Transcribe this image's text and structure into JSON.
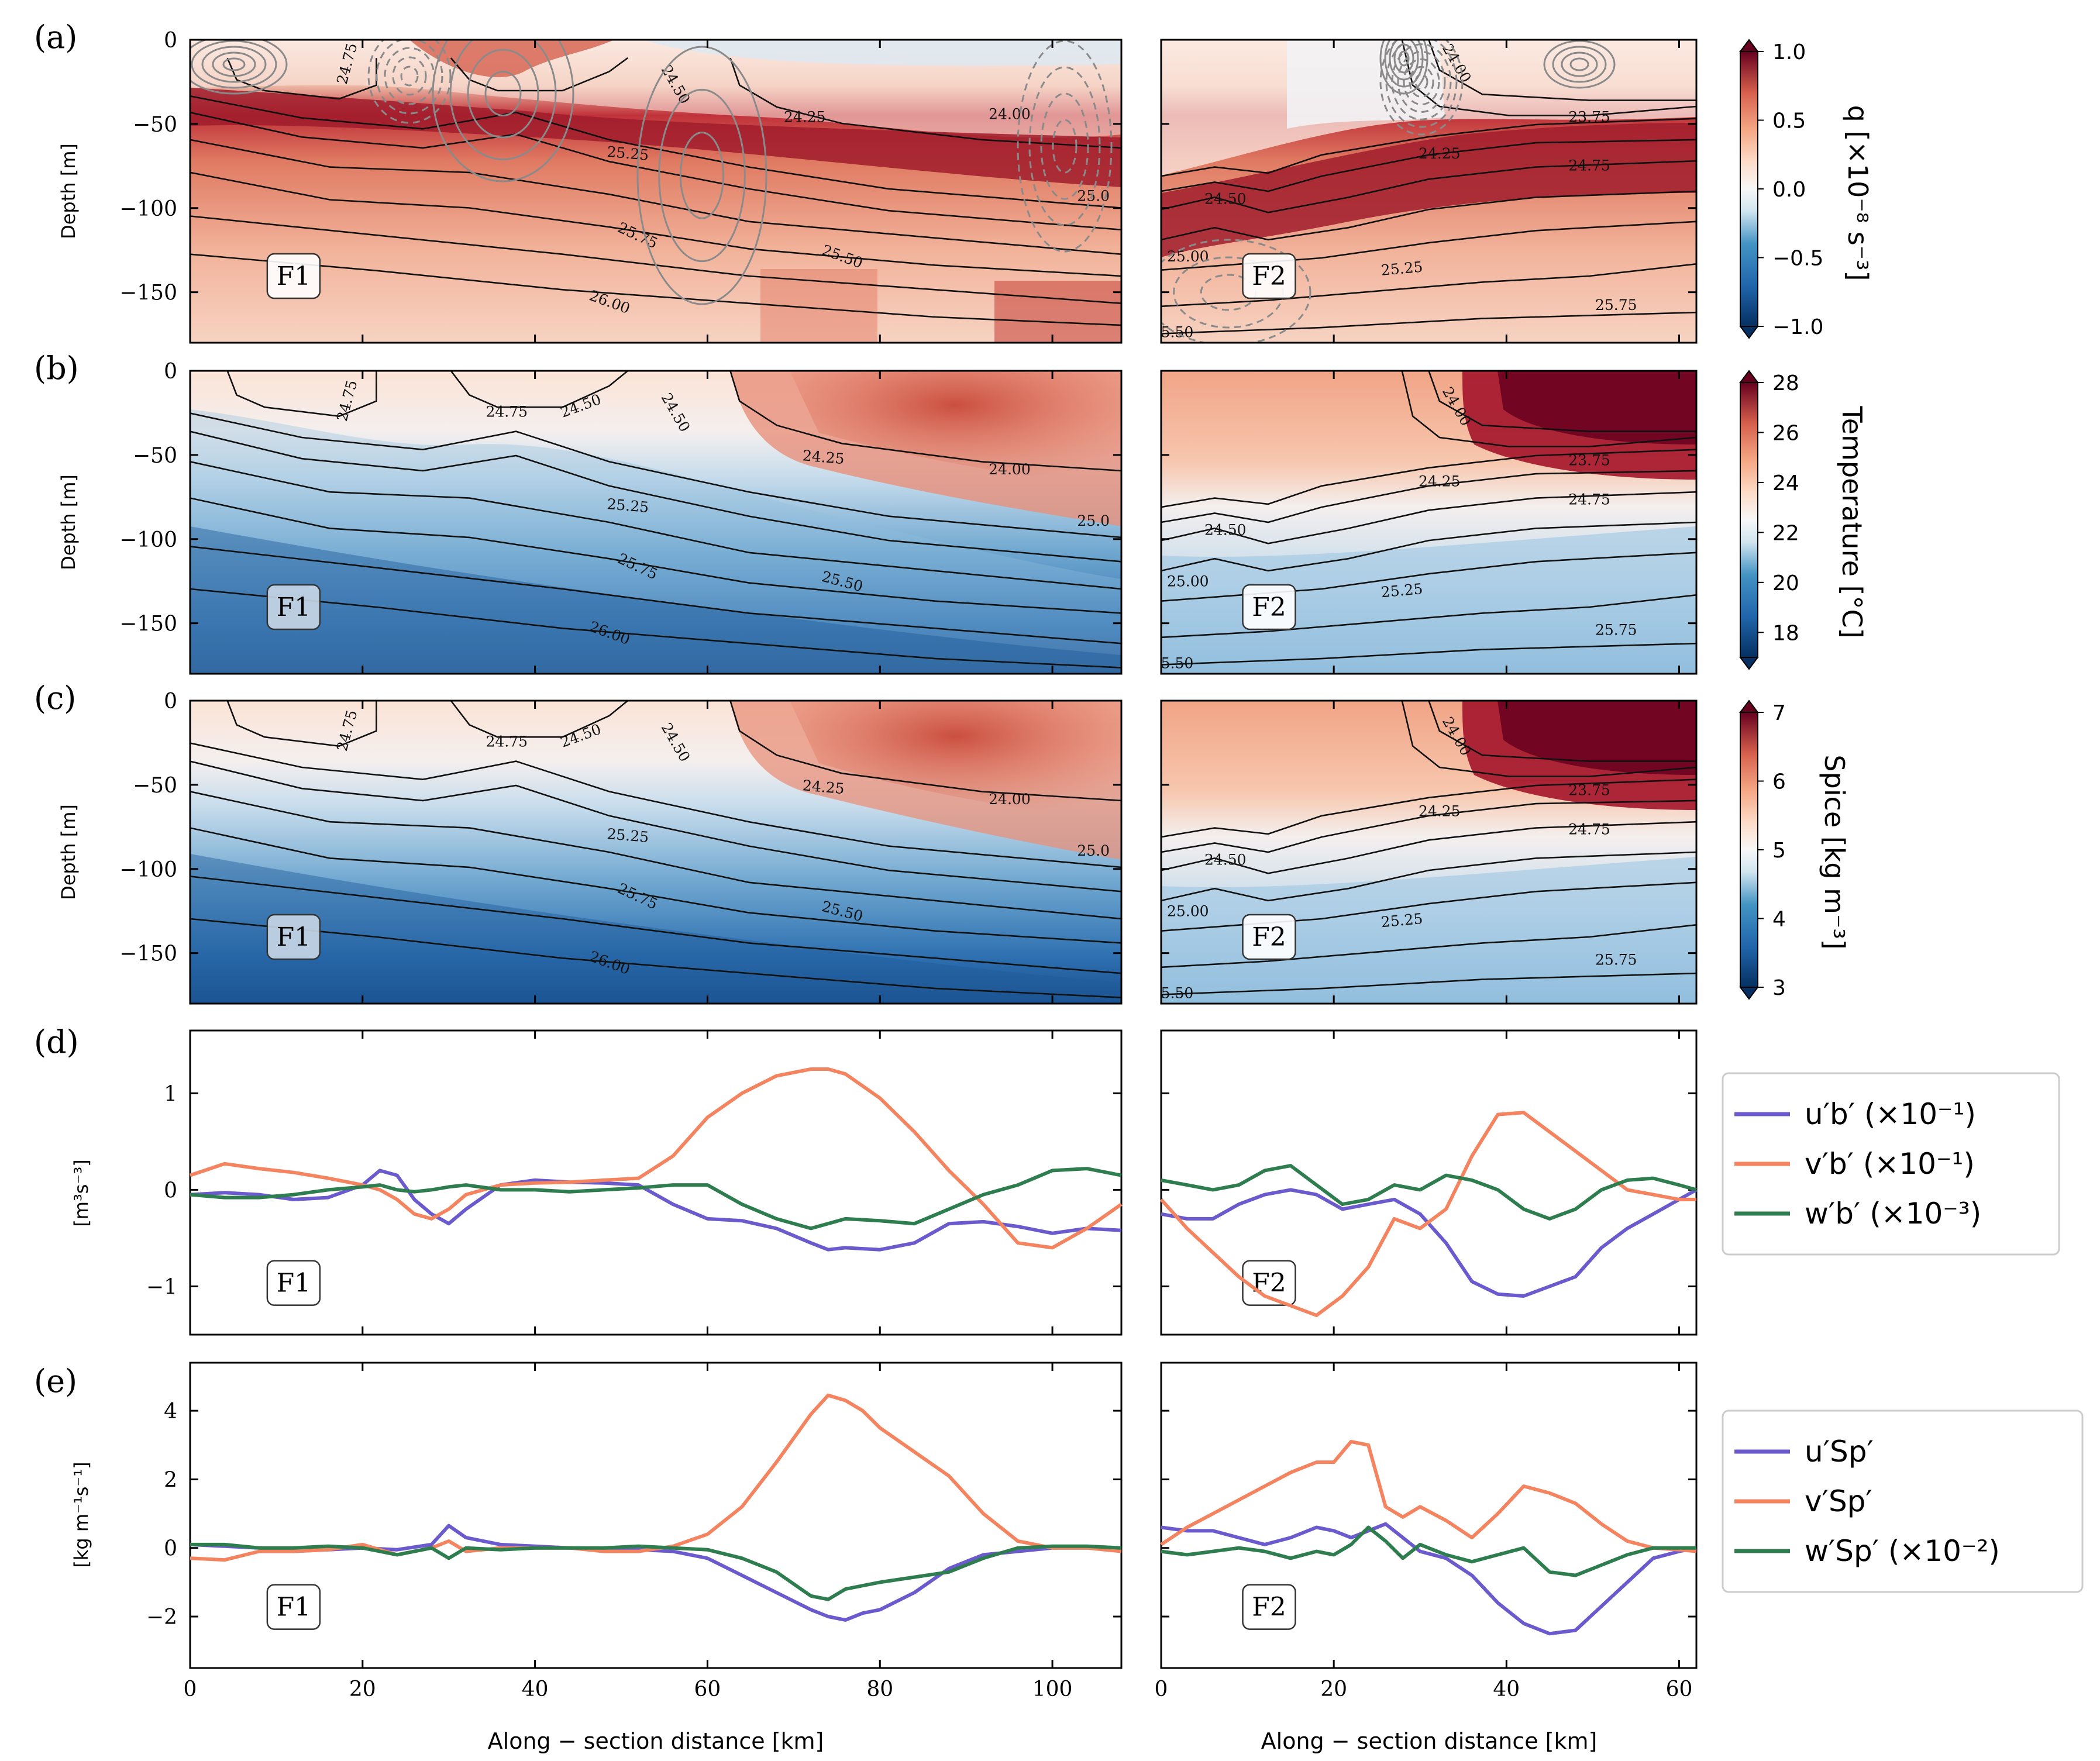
{
  "figure": {
    "panel_letters": [
      "(a)",
      "(b)",
      "(c)",
      "(d)",
      "(e)"
    ],
    "depth_label": "Depth [m]",
    "xlabel": "Along − section distance [km]",
    "front_labels": [
      "F1",
      "F2"
    ],
    "d_ylabel": "[m³s⁻³]",
    "e_ylabel": "[kg m⁻¹s⁻¹]",
    "colorbars": [
      {
        "label": "q [×10⁻⁸ s⁻³]",
        "ticks": [
          "1.0",
          "0.5",
          "0.0",
          "−0.5",
          "−1.0"
        ]
      },
      {
        "label": "Temperature [°C]",
        "ticks": [
          "28",
          "26",
          "24",
          "22",
          "20",
          "18"
        ]
      },
      {
        "label": "Spice [kg m⁻³]",
        "ticks": [
          "7",
          "6",
          "5",
          "4",
          "3"
        ]
      }
    ],
    "legend_d": [
      "u′b′ (×10⁻¹)",
      "v′b′ (×10⁻¹)",
      "w′b′ (×10⁻³)"
    ],
    "legend_e": [
      "u′Sp′",
      "v′Sp′",
      "w′Sp′ (×10⁻²)"
    ]
  },
  "colors": {
    "u": "#6a5acd",
    "v": "#f4845f",
    "w": "#2e7d4f",
    "contour": "#111111",
    "gray_contour": "#8a8a8a"
  },
  "chart_data": [
    {
      "type": "heatmap",
      "panel": "(a)",
      "variable": "q",
      "colorscale": "RdBu_r",
      "clim": [
        -1.0,
        1.0
      ],
      "ylim": [
        -180,
        0
      ],
      "yticks": [
        0,
        -50,
        -100,
        -150
      ],
      "F1": {
        "xlim": [
          0,
          108
        ],
        "xticks": [
          0,
          20,
          40,
          60,
          80,
          100
        ]
      },
      "F2": {
        "xlim": [
          0,
          62
        ],
        "xticks": [
          0,
          20,
          40,
          60
        ]
      },
      "contour_labels": {
        "F1": [
          "24.75",
          "24.50",
          "24.25",
          "24.00",
          "25.25",
          "25.0",
          "25.75",
          "25.50",
          "26.00"
        ],
        "F2": [
          "24.00",
          "23.75",
          "24.25",
          "24.75",
          "24.50",
          "25.00",
          "25.25",
          "25.75",
          "5.50"
        ]
      }
    },
    {
      "type": "heatmap",
      "panel": "(b)",
      "variable": "Temperature",
      "colorscale": "RdBu_r",
      "clim": [
        17,
        28
      ],
      "ylim": [
        -180,
        0
      ],
      "yticks": [
        0,
        -50,
        -100,
        -150
      ],
      "contour_labels": {
        "F1": [
          "24.75",
          "24.75",
          "24.50",
          "24.50",
          "24.25",
          "24.00",
          "25.25",
          "25.0",
          "25.75",
          "25.50",
          "26.00"
        ],
        "F2": [
          "24.00",
          "23.75",
          "24.25",
          "24.75",
          "24.50",
          "25.00",
          "25.25",
          "25.75",
          "5.50"
        ]
      }
    },
    {
      "type": "heatmap",
      "panel": "(c)",
      "variable": "Spice",
      "colorscale": "RdBu_r",
      "clim": [
        3,
        7
      ],
      "ylim": [
        -180,
        0
      ],
      "yticks": [
        0,
        -50,
        -100,
        -150
      ],
      "contour_labels": {
        "F1": [
          "24.75",
          "24.75",
          "24.50",
          "24.50",
          "24.25",
          "24.00",
          "25.25",
          "25.0",
          "25.75",
          "25.50",
          "26.00"
        ],
        "F2": [
          "24.00",
          "23.75",
          "24.25",
          "24.75",
          "24.50",
          "25.00",
          "25.25",
          "25.75",
          "5.50"
        ]
      }
    },
    {
      "type": "line",
      "panel": "(d)",
      "ylim": [
        -1.5,
        1.65
      ],
      "yticks": [
        1,
        0,
        -1
      ],
      "F1": {
        "x": [
          0,
          4,
          8,
          12,
          16,
          20,
          22,
          24,
          26,
          28,
          30,
          32,
          36,
          40,
          44,
          48,
          52,
          56,
          60,
          64,
          68,
          72,
          74,
          76,
          80,
          84,
          88,
          92,
          96,
          100,
          104,
          108
        ],
        "series": [
          {
            "key": "u",
            "values": [
              -0.05,
              -0.03,
              -0.05,
              -0.1,
              -0.08,
              0.05,
              0.2,
              0.15,
              -0.1,
              -0.25,
              -0.35,
              -0.2,
              0.05,
              0.1,
              0.08,
              0.07,
              0.05,
              -0.15,
              -0.3,
              -0.32,
              -0.4,
              -0.55,
              -0.62,
              -0.6,
              -0.62,
              -0.55,
              -0.35,
              -0.33,
              -0.38,
              -0.45,
              -0.4,
              -0.42
            ]
          },
          {
            "key": "v",
            "values": [
              0.15,
              0.27,
              0.22,
              0.18,
              0.12,
              0.05,
              0.0,
              -0.1,
              -0.25,
              -0.3,
              -0.2,
              -0.05,
              0.05,
              0.07,
              0.08,
              0.1,
              0.12,
              0.35,
              0.75,
              1.0,
              1.18,
              1.25,
              1.25,
              1.2,
              0.95,
              0.6,
              0.2,
              -0.15,
              -0.55,
              -0.6,
              -0.4,
              -0.15
            ]
          },
          {
            "key": "w",
            "values": [
              -0.05,
              -0.08,
              -0.08,
              -0.05,
              0.0,
              0.03,
              0.05,
              0.0,
              -0.02,
              0.0,
              0.03,
              0.05,
              0.0,
              0.0,
              -0.02,
              0.0,
              0.02,
              0.05,
              0.05,
              -0.15,
              -0.3,
              -0.4,
              -0.35,
              -0.3,
              -0.32,
              -0.35,
              -0.2,
              -0.05,
              0.05,
              0.2,
              0.22,
              0.15
            ]
          }
        ]
      },
      "F2": {
        "x": [
          0,
          3,
          6,
          9,
          12,
          15,
          18,
          21,
          24,
          27,
          30,
          33,
          36,
          39,
          42,
          45,
          48,
          51,
          54,
          57,
          60,
          62
        ],
        "series": [
          {
            "key": "u",
            "values": [
              -0.25,
              -0.3,
              -0.3,
              -0.15,
              -0.05,
              0.0,
              -0.05,
              -0.2,
              -0.15,
              -0.1,
              -0.25,
              -0.55,
              -0.95,
              -1.08,
              -1.1,
              -1.0,
              -0.9,
              -0.6,
              -0.4,
              -0.25,
              -0.1,
              0.0
            ]
          },
          {
            "key": "v",
            "values": [
              -0.1,
              -0.4,
              -0.65,
              -0.9,
              -1.1,
              -1.2,
              -1.3,
              -1.1,
              -0.8,
              -0.3,
              -0.4,
              -0.2,
              0.35,
              0.78,
              0.8,
              0.6,
              0.4,
              0.2,
              0.0,
              -0.05,
              -0.1,
              -0.1
            ]
          },
          {
            "key": "w",
            "values": [
              0.1,
              0.05,
              0.0,
              0.05,
              0.2,
              0.25,
              0.05,
              -0.15,
              -0.1,
              0.05,
              0.0,
              0.15,
              0.1,
              0.0,
              -0.2,
              -0.3,
              -0.2,
              0.0,
              0.1,
              0.12,
              0.05,
              0.0
            ]
          }
        ]
      }
    },
    {
      "type": "line",
      "panel": "(e)",
      "ylim": [
        -3.5,
        5.4
      ],
      "yticks": [
        4,
        2,
        0,
        -2
      ],
      "F1": {
        "x": [
          0,
          4,
          8,
          12,
          16,
          20,
          24,
          28,
          30,
          32,
          36,
          40,
          44,
          48,
          52,
          56,
          60,
          64,
          68,
          72,
          74,
          76,
          78,
          80,
          84,
          88,
          92,
          96,
          100,
          104,
          108
        ],
        "series": [
          {
            "key": "u",
            "values": [
              0.1,
              0.05,
              0.0,
              -0.1,
              -0.05,
              0.0,
              -0.05,
              0.1,
              0.65,
              0.3,
              0.1,
              0.05,
              0.0,
              -0.05,
              -0.05,
              -0.1,
              -0.3,
              -0.8,
              -1.3,
              -1.8,
              -2.0,
              -2.1,
              -1.9,
              -1.8,
              -1.3,
              -0.6,
              -0.2,
              -0.1,
              0.0,
              0.0,
              0.0
            ]
          },
          {
            "key": "v",
            "values": [
              -0.3,
              -0.35,
              -0.1,
              -0.1,
              -0.05,
              0.1,
              -0.2,
              0.0,
              0.2,
              -0.1,
              0.0,
              0.0,
              0.0,
              -0.1,
              -0.1,
              0.05,
              0.4,
              1.2,
              2.5,
              3.9,
              4.45,
              4.3,
              4.0,
              3.5,
              2.8,
              2.1,
              1.0,
              0.2,
              0.0,
              0.0,
              -0.1
            ]
          },
          {
            "key": "w",
            "values": [
              0.1,
              0.1,
              0.0,
              0.0,
              0.05,
              0.0,
              -0.2,
              0.0,
              -0.3,
              0.0,
              -0.05,
              0.0,
              0.0,
              0.0,
              0.05,
              0.0,
              -0.05,
              -0.3,
              -0.7,
              -1.4,
              -1.5,
              -1.2,
              -1.1,
              -1.0,
              -0.85,
              -0.7,
              -0.3,
              0.0,
              0.05,
              0.05,
              0.0
            ]
          }
        ]
      },
      "F2": {
        "x": [
          0,
          3,
          6,
          9,
          12,
          15,
          18,
          20,
          22,
          24,
          26,
          28,
          30,
          33,
          36,
          39,
          42,
          45,
          48,
          51,
          54,
          57,
          60,
          62
        ],
        "series": [
          {
            "key": "u",
            "values": [
              0.6,
              0.5,
              0.5,
              0.3,
              0.1,
              0.3,
              0.6,
              0.5,
              0.3,
              0.5,
              0.7,
              0.3,
              -0.1,
              -0.3,
              -0.8,
              -1.6,
              -2.2,
              -2.5,
              -2.4,
              -1.7,
              -1.0,
              -0.3,
              -0.1,
              0.0
            ]
          },
          {
            "key": "v",
            "values": [
              0.1,
              0.6,
              1.0,
              1.4,
              1.8,
              2.2,
              2.5,
              2.5,
              3.1,
              3.0,
              1.2,
              0.9,
              1.2,
              0.8,
              0.3,
              1.0,
              1.8,
              1.6,
              1.3,
              0.7,
              0.2,
              0.0,
              -0.05,
              -0.1
            ]
          },
          {
            "key": "w",
            "values": [
              -0.1,
              -0.2,
              -0.1,
              0.0,
              -0.1,
              -0.3,
              -0.1,
              -0.2,
              0.1,
              0.6,
              0.2,
              -0.3,
              0.1,
              -0.2,
              -0.4,
              -0.2,
              0.0,
              -0.7,
              -0.8,
              -0.5,
              -0.2,
              0.0,
              0.0,
              0.0
            ]
          }
        ]
      }
    }
  ]
}
